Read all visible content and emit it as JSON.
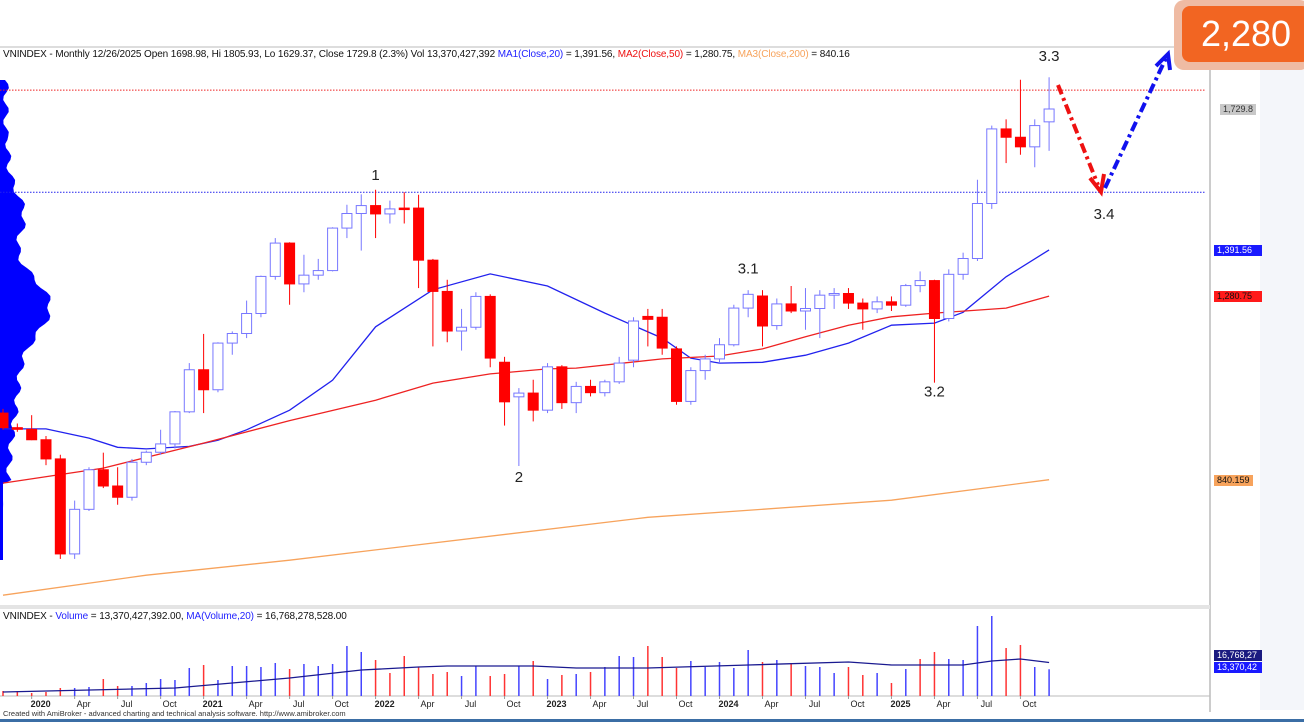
{
  "header": {
    "prefix": "VNINDEX - Monthly 12/26/2025 Open 1698.98, Hi 1805.93, Lo 1629.37, Close 1729.8 (2.3%) Vol 13,370,427,392",
    "ma1_label": "MA1(Close,20)",
    "ma1_value": " = 1,391.56, ",
    "ma2_label": "MA2(Close,50)",
    "ma2_value": " = 1,280.75, ",
    "ma3_label": "MA3(Close,200)",
    "ma3_value": " = 840.16"
  },
  "volume_header": {
    "prefix": "VNINDEX - ",
    "vol_label": "Volume",
    "vol_value": " = 13,370,427,392.00, ",
    "ma_label": "MA(Volume,20)",
    "ma_value": " = 16,768,278,528.00"
  },
  "target_badge": "2,280",
  "price_tags": {
    "close": "1,729.8",
    "ma1": "1,391.56",
    "ma2": "1,280.75",
    "ma3": "840.159"
  },
  "volume_tags": {
    "ma": "16,768,27",
    "vol": "13,370,42"
  },
  "footer": "Created with AmiBroker - advanced charting and technical analysis software. http://www.amibroker.com",
  "colors": {
    "up": "#7777ff",
    "down": "#ff0000",
    "ma1": "#2222ee",
    "ma2": "#ee2222",
    "ma3": "#f7a35c",
    "accent": "#f26522"
  },
  "chart_data": {
    "type": "candlestick",
    "symbol": "VNINDEX",
    "interval": "Monthly",
    "x_tick_labels": [
      {
        "date": "2020-01",
        "label": "2020",
        "bold": true
      },
      {
        "date": "2020-04",
        "label": "Apr"
      },
      {
        "date": "2020-07",
        "label": "Jul"
      },
      {
        "date": "2020-10",
        "label": "Oct"
      },
      {
        "date": "2021-01",
        "label": "2021",
        "bold": true
      },
      {
        "date": "2021-04",
        "label": "Apr"
      },
      {
        "date": "2021-07",
        "label": "Jul"
      },
      {
        "date": "2021-10",
        "label": "Oct"
      },
      {
        "date": "2022-01",
        "label": "2022",
        "bold": true
      },
      {
        "date": "2022-04",
        "label": "Apr"
      },
      {
        "date": "2022-07",
        "label": "Jul"
      },
      {
        "date": "2022-10",
        "label": "Oct"
      },
      {
        "date": "2023-01",
        "label": "2023",
        "bold": true
      },
      {
        "date": "2023-04",
        "label": "Apr"
      },
      {
        "date": "2023-07",
        "label": "Jul"
      },
      {
        "date": "2023-10",
        "label": "Oct"
      },
      {
        "date": "2024-01",
        "label": "2024",
        "bold": true
      },
      {
        "date": "2024-04",
        "label": "Apr"
      },
      {
        "date": "2024-07",
        "label": "Jul"
      },
      {
        "date": "2024-10",
        "label": "Oct"
      },
      {
        "date": "2025-01",
        "label": "2025",
        "bold": true
      },
      {
        "date": "2025-04",
        "label": "Apr"
      },
      {
        "date": "2025-07",
        "label": "Jul"
      },
      {
        "date": "2025-10",
        "label": "Oct"
      }
    ],
    "candles_columns": [
      "date",
      "open",
      "high",
      "low",
      "close"
    ],
    "candles": [
      [
        "2019-11",
        1000,
        1010,
        960,
        965
      ],
      [
        "2019-12",
        965,
        975,
        955,
        961
      ],
      [
        "2020-01",
        961,
        995,
        935,
        936
      ],
      [
        "2020-02",
        936,
        945,
        875,
        890
      ],
      [
        "2020-03",
        890,
        900,
        650,
        662
      ],
      [
        "2020-04",
        662,
        790,
        650,
        769
      ],
      [
        "2020-05",
        769,
        870,
        765,
        864
      ],
      [
        "2020-06",
        864,
        905,
        820,
        825
      ],
      [
        "2020-07",
        825,
        870,
        780,
        798
      ],
      [
        "2020-08",
        798,
        890,
        790,
        882
      ],
      [
        "2020-09",
        882,
        910,
        875,
        906
      ],
      [
        "2020-10",
        906,
        960,
        900,
        926
      ],
      [
        "2020-11",
        926,
        1005,
        915,
        1003
      ],
      [
        "2020-12",
        1003,
        1120,
        1000,
        1104
      ],
      [
        "2021-01",
        1104,
        1190,
        1000,
        1056
      ],
      [
        "2021-02",
        1056,
        1170,
        1050,
        1168
      ],
      [
        "2021-03",
        1168,
        1196,
        1140,
        1191
      ],
      [
        "2021-04",
        1191,
        1270,
        1180,
        1239
      ],
      [
        "2021-05",
        1239,
        1330,
        1230,
        1328
      ],
      [
        "2021-06",
        1328,
        1420,
        1320,
        1408
      ],
      [
        "2021-07",
        1408,
        1410,
        1260,
        1310
      ],
      [
        "2021-08",
        1310,
        1380,
        1290,
        1331
      ],
      [
        "2021-09",
        1331,
        1370,
        1320,
        1342
      ],
      [
        "2021-10",
        1342,
        1446,
        1340,
        1444
      ],
      [
        "2021-11",
        1444,
        1500,
        1420,
        1479
      ],
      [
        "2021-12",
        1479,
        1525,
        1390,
        1498
      ],
      [
        "2022-01",
        1498,
        1536,
        1420,
        1478
      ],
      [
        "2022-02",
        1478,
        1510,
        1455,
        1490
      ],
      [
        "2022-03",
        1492,
        1530,
        1455,
        1490
      ],
      [
        "2022-04",
        1492,
        1524,
        1300,
        1367
      ],
      [
        "2022-05",
        1367,
        1370,
        1160,
        1292
      ],
      [
        "2022-06",
        1292,
        1320,
        1170,
        1197
      ],
      [
        "2022-07",
        1197,
        1250,
        1150,
        1206
      ],
      [
        "2022-08",
        1206,
        1290,
        1200,
        1280
      ],
      [
        "2022-09",
        1280,
        1285,
        1110,
        1132
      ],
      [
        "2022-10",
        1122,
        1135,
        970,
        1027
      ],
      [
        "2022-11",
        1039,
        1060,
        873,
        1048
      ],
      [
        "2022-12",
        1048,
        1080,
        980,
        1007
      ],
      [
        "2023-01",
        1007,
        1120,
        1000,
        1111
      ],
      [
        "2023-02",
        1111,
        1115,
        1010,
        1025
      ],
      [
        "2023-03",
        1025,
        1075,
        1000,
        1064
      ],
      [
        "2023-04",
        1064,
        1080,
        1040,
        1049
      ],
      [
        "2023-05",
        1049,
        1080,
        1040,
        1075
      ],
      [
        "2023-06",
        1075,
        1135,
        1070,
        1120
      ],
      [
        "2023-07",
        1127,
        1230,
        1110,
        1221
      ],
      [
        "2023-08",
        1232,
        1250,
        1160,
        1225
      ],
      [
        "2023-09",
        1230,
        1250,
        1140,
        1156
      ],
      [
        "2023-10",
        1154,
        1160,
        1020,
        1028
      ],
      [
        "2023-11",
        1028,
        1110,
        1020,
        1102
      ],
      [
        "2023-12",
        1102,
        1140,
        1080,
        1130
      ],
      [
        "2024-01",
        1130,
        1180,
        1120,
        1164
      ],
      [
        "2024-02",
        1164,
        1260,
        1160,
        1252
      ],
      [
        "2024-03",
        1252,
        1295,
        1230,
        1285
      ],
      [
        "2024-04",
        1281,
        1295,
        1160,
        1209
      ],
      [
        "2024-05",
        1210,
        1275,
        1200,
        1262
      ],
      [
        "2024-06",
        1262,
        1305,
        1240,
        1245
      ],
      [
        "2024-07",
        1245,
        1300,
        1200,
        1251
      ],
      [
        "2024-08",
        1251,
        1295,
        1180,
        1283
      ],
      [
        "2024-09",
        1283,
        1300,
        1250,
        1287
      ],
      [
        "2024-10",
        1287,
        1300,
        1250,
        1264
      ],
      [
        "2024-11",
        1264,
        1275,
        1200,
        1250
      ],
      [
        "2024-12",
        1250,
        1280,
        1240,
        1267
      ],
      [
        "2025-01",
        1267,
        1280,
        1245,
        1259
      ],
      [
        "2025-02",
        1259,
        1310,
        1255,
        1306
      ],
      [
        "2025-03",
        1306,
        1340,
        1290,
        1318
      ],
      [
        "2025-04",
        1318,
        1320,
        1073,
        1227
      ],
      [
        "2025-05",
        1227,
        1345,
        1220,
        1333
      ],
      [
        "2025-06",
        1333,
        1385,
        1320,
        1371
      ],
      [
        "2025-07",
        1371,
        1560,
        1365,
        1503
      ],
      [
        "2025-08",
        1503,
        1690,
        1490,
        1682
      ],
      [
        "2025-09",
        1682,
        1705,
        1600,
        1662
      ],
      [
        "2025-10",
        1662,
        1800,
        1620,
        1639
      ],
      [
        "2025-11",
        1639,
        1705,
        1590,
        1690
      ],
      [
        "2025-12",
        1698.98,
        1805.93,
        1629.37,
        1729.8
      ]
    ],
    "ma_lines": [
      {
        "name": "MA1(Close,20)",
        "color": "#2222ee",
        "points": [
          [
            "2019-11",
            962
          ],
          [
            "2020-02",
            962
          ],
          [
            "2020-05",
            940
          ],
          [
            "2020-07",
            918
          ],
          [
            "2020-09",
            914
          ],
          [
            "2020-12",
            920
          ],
          [
            "2021-02",
            935
          ],
          [
            "2021-04",
            960
          ],
          [
            "2021-07",
            1007
          ],
          [
            "2021-10",
            1079
          ],
          [
            "2022-01",
            1207
          ],
          [
            "2022-05",
            1296
          ],
          [
            "2022-09",
            1334
          ],
          [
            "2023-01",
            1305
          ],
          [
            "2023-05",
            1240
          ],
          [
            "2023-09",
            1180
          ],
          [
            "2023-11",
            1132
          ],
          [
            "2024-01",
            1120
          ],
          [
            "2024-04",
            1122
          ],
          [
            "2024-07",
            1139
          ],
          [
            "2024-10",
            1168
          ],
          [
            "2025-01",
            1211
          ],
          [
            "2025-04",
            1216
          ],
          [
            "2025-06",
            1242
          ],
          [
            "2025-09",
            1327
          ],
          [
            "2025-12",
            1391.56
          ]
        ]
      },
      {
        "name": "MA2(Close,50)",
        "color": "#ee2222",
        "points": [
          [
            "2019-11",
            832
          ],
          [
            "2020-06",
            868
          ],
          [
            "2021-01",
            928
          ],
          [
            "2021-07",
            982
          ],
          [
            "2022-01",
            1031
          ],
          [
            "2022-05",
            1072
          ],
          [
            "2022-09",
            1094
          ],
          [
            "2023-01",
            1106
          ],
          [
            "2023-03",
            1108
          ],
          [
            "2023-09",
            1130
          ],
          [
            "2024-01",
            1137
          ],
          [
            "2024-04",
            1154
          ],
          [
            "2024-07",
            1183
          ],
          [
            "2024-10",
            1211
          ],
          [
            "2025-01",
            1231
          ],
          [
            "2025-04",
            1240
          ],
          [
            "2025-09",
            1252
          ],
          [
            "2025-12",
            1280.75
          ]
        ]
      },
      {
        "name": "MA3(Close,200)",
        "color": "#f7a35c",
        "points": [
          [
            "2019-11",
            563
          ],
          [
            "2020-09",
            611
          ],
          [
            "2021-07",
            647
          ],
          [
            "2023-08",
            750
          ],
          [
            "2025-01",
            791
          ],
          [
            "2025-12",
            840.16
          ]
        ]
      }
    ],
    "horizontal_levels": [
      {
        "price": 1775,
        "color": "#ee2222",
        "style": "dotted"
      },
      {
        "price": 1530,
        "color": "#2222ee",
        "style": "dotted"
      }
    ],
    "wave_labels": [
      {
        "text": "1",
        "date": "2022-01",
        "price": 1560
      },
      {
        "text": "2",
        "date": "2022-11",
        "price": 835
      },
      {
        "text": "3.1",
        "date": "2024-03",
        "price": 1335
      },
      {
        "text": "3.2",
        "date": "2025-04",
        "price": 1040
      },
      {
        "text": "3.3",
        "date": "2025-12",
        "price": 1845
      },
      {
        "text": "3.4",
        "label_only": true
      }
    ],
    "volume_columns": [
      "date",
      "volume_billions",
      "bar_color"
    ],
    "volume": [
      [
        "2019-11",
        2.5,
        "down"
      ],
      [
        "2019-12",
        2.5,
        "down"
      ],
      [
        "2020-01",
        1.5,
        "down"
      ],
      [
        "2020-02",
        2,
        "down"
      ],
      [
        "2020-03",
        4,
        "down"
      ],
      [
        "2020-04",
        4,
        "up"
      ],
      [
        "2020-05",
        4.5,
        "up"
      ],
      [
        "2020-06",
        8.5,
        "down"
      ],
      [
        "2020-07",
        5,
        "down"
      ],
      [
        "2020-08",
        5,
        "up"
      ],
      [
        "2020-09",
        6.5,
        "up"
      ],
      [
        "2020-10",
        8.5,
        "up"
      ],
      [
        "2020-11",
        8,
        "up"
      ],
      [
        "2020-12",
        14,
        "up"
      ],
      [
        "2021-01",
        15.5,
        "down"
      ],
      [
        "2021-02",
        8,
        "up"
      ],
      [
        "2021-03",
        15,
        "up"
      ],
      [
        "2021-04",
        15,
        "up"
      ],
      [
        "2021-05",
        14.5,
        "up"
      ],
      [
        "2021-06",
        16.5,
        "up"
      ],
      [
        "2021-07",
        13.5,
        "down"
      ],
      [
        "2021-08",
        16,
        "up"
      ],
      [
        "2021-09",
        15,
        "up"
      ],
      [
        "2021-10",
        16,
        "up"
      ],
      [
        "2021-11",
        25,
        "up"
      ],
      [
        "2021-12",
        22,
        "up"
      ],
      [
        "2022-01",
        18,
        "down"
      ],
      [
        "2022-02",
        11.5,
        "down"
      ],
      [
        "2022-03",
        20,
        "down"
      ],
      [
        "2022-04",
        14.5,
        "down"
      ],
      [
        "2022-05",
        11,
        "down"
      ],
      [
        "2022-06",
        12,
        "down"
      ],
      [
        "2022-07",
        10,
        "up"
      ],
      [
        "2022-08",
        15,
        "up"
      ],
      [
        "2022-09",
        10,
        "down"
      ],
      [
        "2022-10",
        11,
        "down"
      ],
      [
        "2022-11",
        15,
        "up"
      ],
      [
        "2022-12",
        17.5,
        "down"
      ],
      [
        "2023-01",
        8.5,
        "up"
      ],
      [
        "2023-02",
        10.5,
        "down"
      ],
      [
        "2023-03",
        11,
        "up"
      ],
      [
        "2023-04",
        12,
        "down"
      ],
      [
        "2023-05",
        14.5,
        "up"
      ],
      [
        "2023-06",
        20,
        "up"
      ],
      [
        "2023-07",
        19.5,
        "up"
      ],
      [
        "2023-08",
        25,
        "down"
      ],
      [
        "2023-09",
        19.5,
        "down"
      ],
      [
        "2023-10",
        14,
        "down"
      ],
      [
        "2023-11",
        17.5,
        "up"
      ],
      [
        "2023-12",
        14.5,
        "up"
      ],
      [
        "2024-01",
        17,
        "up"
      ],
      [
        "2024-02",
        14,
        "up"
      ],
      [
        "2024-03",
        23,
        "up"
      ],
      [
        "2024-04",
        17,
        "down"
      ],
      [
        "2024-05",
        18,
        "up"
      ],
      [
        "2024-06",
        16.5,
        "down"
      ],
      [
        "2024-07",
        15,
        "up"
      ],
      [
        "2024-08",
        14.5,
        "up"
      ],
      [
        "2024-09",
        11.5,
        "up"
      ],
      [
        "2024-10",
        14.5,
        "down"
      ],
      [
        "2024-11",
        10.5,
        "down"
      ],
      [
        "2024-12",
        11.5,
        "up"
      ],
      [
        "2025-01",
        6.5,
        "down"
      ],
      [
        "2025-02",
        13.5,
        "up"
      ],
      [
        "2025-03",
        18.5,
        "down"
      ],
      [
        "2025-04",
        22,
        "down"
      ],
      [
        "2025-05",
        18.5,
        "up"
      ],
      [
        "2025-06",
        18,
        "up"
      ],
      [
        "2025-07",
        35,
        "up"
      ],
      [
        "2025-08",
        40,
        "up"
      ],
      [
        "2025-09",
        24,
        "down"
      ],
      [
        "2025-10",
        25.5,
        "down"
      ],
      [
        "2025-11",
        14.5,
        "up"
      ],
      [
        "2025-12",
        13.37,
        "up"
      ]
    ],
    "volume_ma": [
      [
        "2019-11",
        2
      ],
      [
        "2020-11",
        4
      ],
      [
        "2021-07",
        9
      ],
      [
        "2021-12",
        13
      ],
      [
        "2022-04",
        14.5
      ],
      [
        "2022-06",
        15
      ],
      [
        "2022-12",
        15
      ],
      [
        "2023-03",
        14
      ],
      [
        "2023-08",
        14
      ],
      [
        "2024-03",
        15.5
      ],
      [
        "2024-10",
        17
      ],
      [
        "2025-01",
        15.5
      ],
      [
        "2025-06",
        15.5
      ],
      [
        "2025-08",
        17.5
      ],
      [
        "2025-10",
        18.5
      ],
      [
        "2025-12",
        16.77
      ]
    ]
  }
}
